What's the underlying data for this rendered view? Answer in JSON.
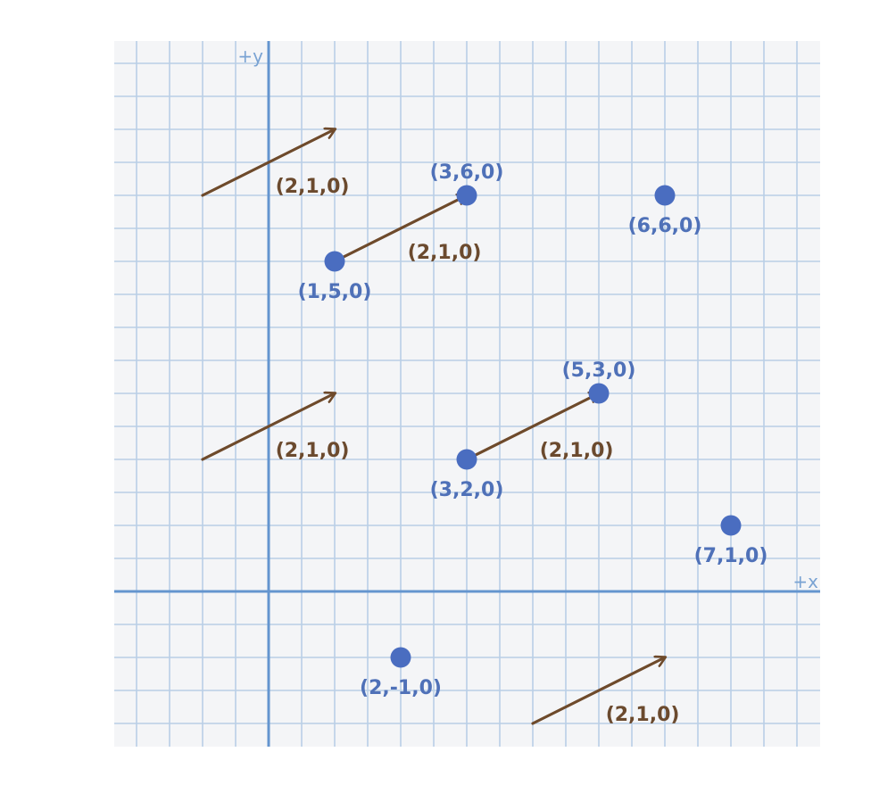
{
  "colors": {
    "background": "#ffffff",
    "grid_panel": "#f4f5f7",
    "grid_line": "#b9cfe6",
    "axis": "#6495cf",
    "axis_label": "#7aa3d3",
    "point": "#4a6dc0",
    "point_label": "#4f71b8",
    "vector": "#6e4a2b",
    "vector_label": "#6b4a2e"
  },
  "axes": {
    "x_label": "+x",
    "y_label": "+y"
  },
  "grid": {
    "x_range": [
      -2.35,
      8.35
    ],
    "y_range": [
      -2.35,
      8.35
    ]
  },
  "points": [
    {
      "x": 3,
      "y": 6,
      "label": "(3,6,0)"
    },
    {
      "x": 6,
      "y": 6,
      "label": "(6,6,0)"
    },
    {
      "x": 1,
      "y": 5,
      "label": "(1,5,0)"
    },
    {
      "x": 5,
      "y": 3,
      "label": "(5,3,0)"
    },
    {
      "x": 3,
      "y": 2,
      "label": "(3,2,0)"
    },
    {
      "x": 7,
      "y": 1,
      "label": "(7,1,0)"
    },
    {
      "x": 2,
      "y": -1,
      "label": "(2,-1,0)"
    }
  ],
  "vectors": [
    {
      "from": [
        -1,
        6
      ],
      "to": [
        1,
        7
      ],
      "label": "(2,1,0)"
    },
    {
      "from": [
        1,
        5
      ],
      "to": [
        3,
        6
      ],
      "label": "(2,1,0)"
    },
    {
      "from": [
        -1,
        2
      ],
      "to": [
        1,
        3
      ],
      "label": "(2,1,0)"
    },
    {
      "from": [
        3,
        2
      ],
      "to": [
        5,
        3
      ],
      "label": "(2,1,0)"
    },
    {
      "from": [
        4,
        -2
      ],
      "to": [
        6,
        -1
      ],
      "label": "(2,1,0)"
    }
  ]
}
